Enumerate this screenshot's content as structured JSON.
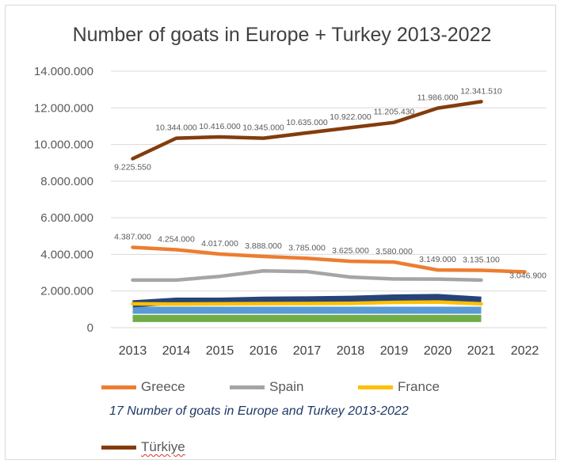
{
  "chart_data": {
    "type": "line",
    "title": "Number of goats in Europe + Turkey 2013-2022",
    "categories": [
      "2013",
      "2014",
      "2015",
      "2016",
      "2017",
      "2018",
      "2019",
      "2020",
      "2021",
      "2022"
    ],
    "ylim": [
      0,
      14000000
    ],
    "y_ticks": [
      "0",
      "2.000.000",
      "4.000.000",
      "6.000.000",
      "8.000.000",
      "10.000.000",
      "12.000.000",
      "14.000.000"
    ],
    "grid": true,
    "legend_position": "bottom",
    "series": [
      {
        "name": "Türkiye",
        "color": "#843c0c",
        "in_legend": true,
        "show_labels": true,
        "values": [
          9225550,
          10344000,
          10416000,
          10345000,
          10635000,
          10922000,
          11205430,
          11986000,
          12341510,
          null
        ],
        "labels": [
          "9.225.550",
          "10.344.000",
          "10.416.000",
          "10.345.000",
          "10.635.000",
          "10.922.000",
          "11.205.430",
          "11.986.000",
          "12.341.510",
          ""
        ]
      },
      {
        "name": "Greece",
        "color": "#ed7d31",
        "in_legend": true,
        "show_labels": true,
        "values": [
          4387000,
          4254000,
          4017000,
          3888000,
          3785000,
          3625000,
          3580000,
          3149000,
          3135100,
          3046900
        ],
        "labels": [
          "4.387.000",
          "4.254.000",
          "4.017.000",
          "3.888.000",
          "3.785.000",
          "3.625.000",
          "3.580.000",
          "3.149.000",
          "3.135.100",
          "3.046.900"
        ]
      },
      {
        "name": "Spain",
        "color": "#a5a5a5",
        "in_legend": true,
        "show_labels": false,
        "values": [
          2600000,
          2600000,
          2800000,
          3100000,
          3060000,
          2760000,
          2660000,
          2650000,
          2600000,
          null
        ]
      },
      {
        "name": "France",
        "color": "#ffc000",
        "in_legend": true,
        "show_labels": false,
        "values": [
          1300000,
          1290000,
          1300000,
          1310000,
          1320000,
          1330000,
          1380000,
          1400000,
          1300000,
          null
        ]
      },
      {
        "name": "",
        "color": "#264478",
        "in_legend": false,
        "show_labels": false,
        "values": [
          1300000,
          1450000,
          1450000,
          1500000,
          1520000,
          1550000,
          1620000,
          1650000,
          1500000,
          null
        ]
      },
      {
        "name": "",
        "color": "#5b9bd5",
        "in_legend": false,
        "show_labels": false,
        "values": [
          950000,
          950000,
          950000,
          950000,
          950000,
          950000,
          950000,
          950000,
          950000,
          null
        ]
      },
      {
        "name": "",
        "color": "#70ad47",
        "in_legend": false,
        "show_labels": false,
        "values": [
          500000,
          500000,
          500000,
          500000,
          500000,
          500000,
          500000,
          500000,
          500000,
          null
        ]
      }
    ]
  },
  "legend": {
    "items": [
      {
        "label": "Greece",
        "color": "#ed7d31"
      },
      {
        "label": "Spain",
        "color": "#a5a5a5"
      },
      {
        "label": "France",
        "color": "#ffc000"
      },
      {
        "label": "Türkiye",
        "color": "#843c0c"
      }
    ]
  },
  "caption": "17 Number of goats in Europe and Turkey 2013-2022"
}
